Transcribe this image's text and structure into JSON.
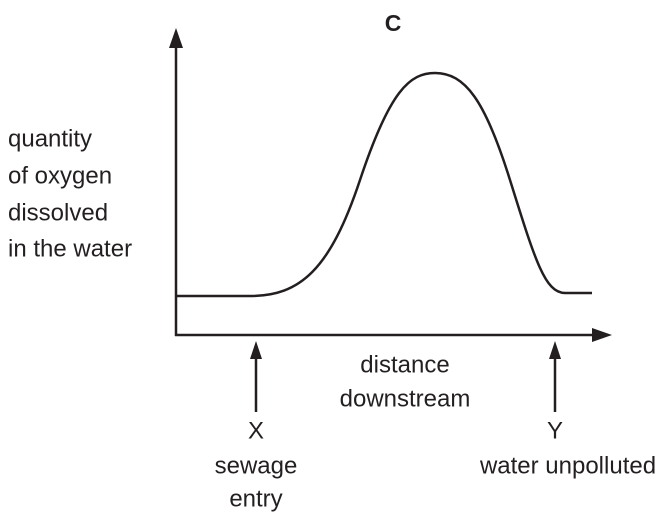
{
  "title": "C",
  "y_axis_label": [
    "quantity",
    "of oxygen",
    "dissolved",
    "in the water"
  ],
  "x_axis_label": [
    "distance",
    "downstream"
  ],
  "markers": [
    {
      "letter": "X",
      "label": [
        "sewage",
        "entry"
      ]
    },
    {
      "letter": "Y",
      "label": [
        "water unpolluted"
      ]
    }
  ]
}
